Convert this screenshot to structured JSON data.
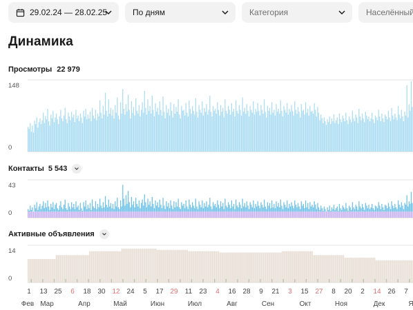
{
  "filters": {
    "date_range": "29.02.24 — 28.02.25",
    "grouping": "По дням",
    "category_placeholder": "Категория",
    "locality_placeholder": "Населённый пункт"
  },
  "page_title": "Динамика",
  "colors": {
    "views": "#a9dcf2",
    "contacts_top": "#6cc1e6",
    "contacts_base": "#c9b3f0",
    "ads": "#e8dfd6",
    "ads_low": "#b9c9a8",
    "accent_red": "#e07070"
  },
  "chart_data": [
    {
      "type": "bar",
      "title": "Просмотры",
      "total": "22 979",
      "ylim": [
        0,
        148
      ],
      "yticks": [
        "148",
        "0"
      ],
      "values": [
        52,
        48,
        60,
        42,
        55,
        40,
        65,
        58,
        72,
        50,
        62,
        70,
        58,
        66,
        82,
        60,
        75,
        68,
        90,
        64,
        55,
        78,
        70,
        86,
        62,
        72,
        80,
        68,
        58,
        74,
        88,
        70,
        64,
        76,
        92,
        68,
        60,
        82,
        74,
        66,
        84,
        72,
        78,
        62,
        88,
        70,
        76,
        64,
        80,
        72,
        60,
        86,
        74,
        90,
        68,
        78,
        70,
        84,
        64,
        92,
        76,
        70,
        88,
        66,
        80,
        74,
        108,
        82,
        70,
        96,
        78,
        124,
        86,
        74,
        110,
        80,
        92,
        76,
        88,
        70,
        98,
        82,
        114,
        76,
        68,
        104,
        80,
        132,
        90,
        78,
        100,
        84,
        120,
        88,
        70,
        106,
        82,
        94,
        76,
        112,
        86,
        80,
        98,
        74,
        88,
        104,
        82,
        128,
        92,
        78,
        110,
        86,
        96,
        80,
        118,
        88,
        74,
        102,
        84,
        92,
        78,
        106,
        88,
        76,
        116,
        84,
        70,
        98,
        82,
        90,
        76,
        104,
        86,
        72,
        100,
        80,
        94,
        84,
        110,
        78,
        70,
        96,
        86,
        88,
        76,
        102,
        82,
        74,
        108,
        90,
        80,
        96,
        86,
        78,
        112,
        84,
        72,
        98,
        88,
        82,
        106,
        76,
        92,
        84,
        100,
        78,
        88,
        118,
        84,
        74,
        96,
        86,
        90,
        80,
        104,
        88,
        76,
        98,
        84,
        92,
        72,
        110,
        86,
        80,
        96,
        88,
        78,
        102,
        84,
        90,
        74,
        108,
        86,
        80,
        98,
        88,
        76,
        114,
        84,
        92,
        80,
        100,
        86,
        74,
        96,
        88,
        82,
        106,
        78,
        90,
        84,
        102,
        86,
        76,
        98,
        88,
        80,
        110,
        84,
        72,
        96,
        86,
        92,
        78,
        104,
        82,
        88,
        76,
        100,
        84,
        90,
        80,
        108,
        86,
        74,
        96,
        88,
        82,
        102,
        78,
        90,
        84,
        98,
        86,
        76,
        106,
        88,
        80,
        94,
        84,
        72,
        100,
        86,
        88,
        78,
        104,
        82,
        90,
        76,
        96,
        84,
        86,
        80,
        102,
        88,
        74,
        94,
        82,
        66,
        78,
        70,
        60,
        72,
        64,
        56,
        68,
        62,
        74,
        58,
        70,
        64,
        78,
        60,
        66,
        72,
        58,
        80,
        68,
        62,
        76,
        70,
        64,
        82,
        66,
        58,
        74,
        68,
        62,
        86,
        70,
        64,
        78,
        72,
        60,
        90,
        74,
        66,
        80,
        70,
        62,
        84,
        76,
        68,
        74,
        64,
        70,
        82,
        68,
        60,
        76,
        72,
        66,
        88,
        74,
        64,
        80,
        70,
        62,
        78,
        74,
        68,
        86,
        72,
        64,
        92,
        76,
        68,
        80,
        72,
        66,
        96,
        78,
        70,
        88,
        74,
        64,
        84,
        76,
        140,
        72,
        100,
        86,
        148,
        94
      ],
      "color_key": "views"
    },
    {
      "type": "bar",
      "title": "Контакты",
      "total": "5 543",
      "ylim": [
        0,
        43
      ],
      "yticks": [
        "43",
        "0"
      ],
      "values": [
        10,
        8,
        14,
        9,
        12,
        7,
        15,
        11,
        18,
        9,
        13,
        16,
        10,
        14,
        19,
        11,
        17,
        12,
        20,
        13,
        9,
        16,
        12,
        18,
        10,
        15,
        17,
        11,
        9,
        14,
        19,
        12,
        10,
        15,
        21,
        11,
        9,
        17,
        13,
        10,
        18,
        12,
        16,
        10,
        19,
        12,
        14,
        9,
        17,
        11,
        8,
        18,
        13,
        20,
        10,
        15,
        11,
        17,
        9,
        21,
        13,
        11,
        19,
        10,
        16,
        12,
        22,
        14,
        11,
        18,
        12,
        25,
        15,
        12,
        21,
        13,
        17,
        11,
        16,
        10,
        19,
        13,
        23,
        12,
        10,
        20,
        13,
        38,
        22,
        14,
        26,
        16,
        31,
        18,
        12,
        24,
        15,
        19,
        12,
        23,
        16,
        13,
        20,
        11,
        17,
        21,
        14,
        27,
        18,
        12,
        22,
        15,
        19,
        13,
        24,
        16,
        11,
        20,
        14,
        18,
        12,
        21,
        15,
        11,
        23,
        14,
        10,
        19,
        13,
        17,
        11,
        20,
        14,
        10,
        19,
        12,
        18,
        13,
        22,
        12,
        10,
        18,
        14,
        16,
        11,
        20,
        13,
        10,
        21,
        15,
        12,
        18,
        14,
        11,
        22,
        13,
        10,
        19,
        15,
        12,
        20,
        11,
        17,
        13,
        19,
        12,
        15,
        23,
        13,
        10,
        18,
        14,
        16,
        12,
        20,
        15,
        11,
        19,
        13,
        17,
        10,
        22,
        14,
        12,
        18,
        15,
        11,
        20,
        13,
        16,
        10,
        21,
        14,
        12,
        18,
        15,
        11,
        22,
        13,
        17,
        12,
        19,
        14,
        10,
        18,
        15,
        12,
        20,
        11,
        16,
        13,
        19,
        14,
        11,
        18,
        15,
        12,
        21,
        13,
        10,
        18,
        14,
        17,
        11,
        20,
        12,
        16,
        11,
        19,
        13,
        17,
        12,
        21,
        14,
        10,
        18,
        15,
        12,
        20,
        11,
        16,
        13,
        18,
        14,
        11,
        20,
        15,
        12,
        17,
        13,
        10,
        19,
        14,
        16,
        11,
        20,
        12,
        17,
        10,
        18,
        13,
        15,
        12,
        19,
        15,
        10,
        17,
        12,
        9,
        14,
        11,
        8,
        13,
        10,
        7,
        12,
        9,
        14,
        8,
        12,
        10,
        15,
        9,
        11,
        13,
        8,
        16,
        11,
        9,
        14,
        12,
        10,
        17,
        11,
        8,
        14,
        12,
        9,
        18,
        12,
        10,
        15,
        13,
        9,
        19,
        13,
        11,
        16,
        12,
        9,
        17,
        14,
        11,
        15,
        10,
        12,
        16,
        11,
        9,
        14,
        13,
        11,
        18,
        14,
        10,
        16,
        12,
        9,
        15,
        14,
        11,
        17,
        13,
        10,
        19,
        14,
        11,
        16,
        12,
        10,
        20,
        15,
        12,
        18,
        14,
        10,
        17,
        15,
        26,
        13,
        19,
        16,
        30,
        17
      ],
      "color_key": "contacts_top"
    },
    {
      "type": "bar",
      "title": "Активные объявления",
      "ylim": [
        0,
        14
      ],
      "yticks": [
        "14",
        "0"
      ],
      "values": [
        9.0,
        9.0,
        9.0,
        9.0,
        9.0,
        9.0,
        9.0,
        9.0,
        9.0,
        9.0,
        9.0,
        9.0,
        9.0,
        9.0,
        9.0,
        9.0,
        9.0,
        9.0,
        9.0,
        9.0,
        9.0,
        9.0,
        9.0,
        9.0,
        9.0,
        9.0,
        9.0,
        10.5,
        10.5,
        10.5,
        10.5,
        10.5,
        10.5,
        10.5,
        10.5,
        10.5,
        10.5,
        10.5,
        10.5,
        10.5,
        10.5,
        10.5,
        10.5,
        10.5,
        10.5,
        10.5,
        10.5,
        10.5,
        10.5,
        10.5,
        10.5,
        10.5,
        10.5,
        10.5,
        10.5,
        10.5,
        10.5,
        10.5,
        10.5,
        12.0,
        12.0,
        12.0,
        12.0,
        12.0,
        12.0,
        12.0,
        12.0,
        12.0,
        12.0,
        12.0,
        12.0,
        12.0,
        12.0,
        12.0,
        12.0,
        12.0,
        12.0,
        12.0,
        12.0,
        12.0,
        12.0,
        12.0,
        12.0,
        12.0,
        12.0,
        12.0,
        12.0,
        12.0,
        12.0,
        12.0,
        13.0,
        13.0,
        13.0,
        13.0,
        13.0,
        13.0,
        13.0,
        13.0,
        13.0,
        13.0,
        13.0,
        13.0,
        13.0,
        13.0,
        13.0,
        13.0,
        13.0,
        13.0,
        13.0,
        13.0,
        13.0,
        13.0,
        13.0,
        13.0,
        13.0,
        13.0,
        13.0,
        13.0,
        13.0,
        13.0,
        13.0,
        13.0,
        13.0,
        13.0,
        12.5,
        12.5,
        12.5,
        12.5,
        12.5,
        12.5,
        12.5,
        12.5,
        12.5,
        12.5,
        12.5,
        12.5,
        12.5,
        12.5,
        12.5,
        12.5,
        12.5,
        12.5,
        12.5,
        12.5,
        12.5,
        12.5,
        12.5,
        12.5,
        12.5,
        12.5,
        12.5,
        12.5,
        12.5,
        12.5,
        12.0,
        12.0,
        12.0,
        12.0,
        12.0,
        12.0,
        12.0,
        12.0,
        12.0,
        12.0,
        12.0,
        12.0,
        12.0,
        12.0,
        12.0,
        12.0,
        12.0,
        12.0,
        12.0,
        12.0,
        12.0,
        12.0,
        12.0,
        12.0,
        12.0,
        12.0,
        12.0,
        12.0,
        12.0,
        12.0,
        11.5,
        11.5,
        11.5,
        11.5,
        11.5,
        11.5,
        11.5,
        11.5,
        11.5,
        11.5,
        11.5,
        11.5,
        11.5,
        11.5,
        11.5,
        11.5,
        11.5,
        11.5,
        11.5,
        11.5,
        11.5,
        11.5,
        11.5,
        11.5,
        11.5,
        11.5,
        11.5,
        11.5,
        11.5,
        11.5,
        11.5,
        11.5,
        11.5,
        11.5,
        11.5,
        11.5,
        11.5,
        11.5,
        11.5,
        11.5,
        11.5,
        11.5,
        11.5,
        11.5,
        11.5,
        11.5,
        11.5,
        11.5,
        11.5,
        11.5,
        11.5,
        11.5,
        11.5,
        11.5,
        11.5,
        11.5,
        11.5,
        11.5,
        11.5,
        11.5,
        12.0,
        12.0,
        12.0,
        12.0,
        12.0,
        12.0,
        12.0,
        12.0,
        12.0,
        12.0,
        12.0,
        12.0,
        12.0,
        12.0,
        12.0,
        12.0,
        12.0,
        12.0,
        12.0,
        12.0,
        12.0,
        12.0,
        12.0,
        12.0,
        12.0,
        12.0,
        12.0,
        12.0,
        12.0,
        12.0,
        10.5,
        10.5,
        10.5,
        10.5,
        10.5,
        10.5,
        10.5,
        10.5,
        10.5,
        10.5,
        10.5,
        10.5,
        10.5,
        10.5,
        10.5,
        10.5,
        10.5,
        10.5,
        10.5,
        10.5,
        10.5,
        10.5,
        10.5,
        10.5,
        10.5,
        10.5,
        10.5,
        10.5,
        10.5,
        10.5,
        9.5,
        9.5,
        9.5,
        9.5,
        9.5,
        9.5,
        9.5,
        9.5,
        9.5,
        9.5,
        9.5,
        9.5,
        9.5,
        9.5,
        9.5,
        9.5,
        9.5,
        9.5,
        9.5,
        9.5,
        9.5,
        9.5,
        9.5,
        9.5,
        9.5,
        9.5,
        9.5,
        9.5,
        9.5,
        9.5,
        8.5,
        8.5,
        8.5,
        8.5,
        8.5,
        8.5,
        8.5,
        8.5,
        8.5,
        8.5,
        8.5,
        8.5,
        8.5,
        8.5,
        8.5,
        8.5,
        8.5,
        8.5,
        8.5,
        8.5,
        8.5,
        8.5,
        8.5,
        8.5,
        8.5,
        8.5,
        8.5,
        8.5,
        8.5,
        8.5,
        8.5,
        8.5,
        8.5,
        8.5,
        8.5,
        8.5
      ],
      "color_key": "ads"
    }
  ],
  "x_axis": {
    "day_ticks": [
      "1",
      "13",
      "25",
      "6",
      "18",
      "30",
      "12",
      "24",
      "5",
      "17",
      "29",
      "11",
      "23",
      "4",
      "16",
      "28",
      "9",
      "21",
      "3",
      "15",
      "27",
      "8",
      "20",
      "2",
      "14",
      "26",
      "7"
    ],
    "red_day_indices": [
      3,
      6,
      10,
      13,
      18,
      20,
      24
    ],
    "month_ticks": [
      "Фев",
      "Мар",
      "Апр",
      "Май",
      "Июн",
      "Июл",
      "Авг",
      "Сен",
      "Окт",
      "Ноя",
      "Дек",
      "Я"
    ]
  }
}
